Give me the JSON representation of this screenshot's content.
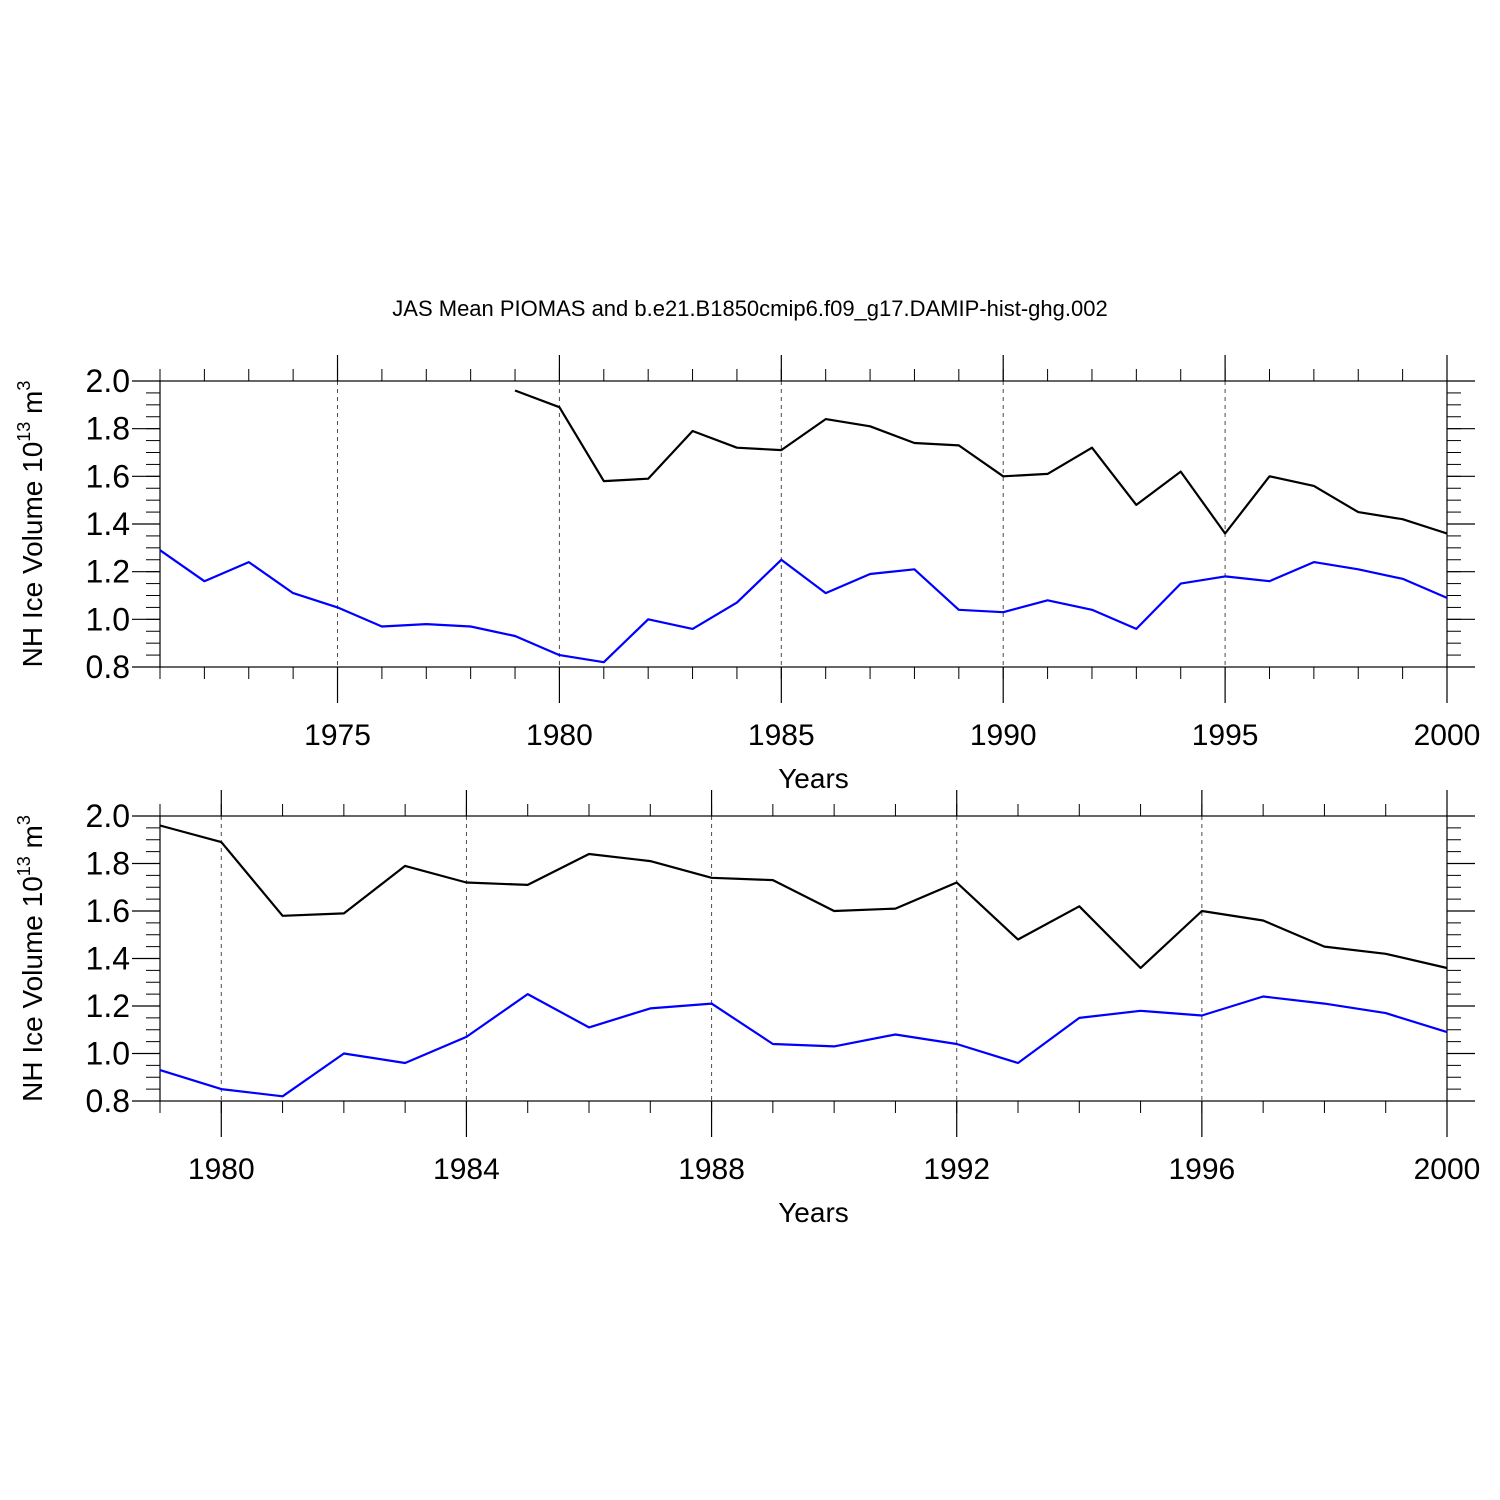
{
  "title": "JAS Mean PIOMAS and b.e21.B1850cmip6.f09_g17.DAMIP-hist-ghg.002",
  "colors": {
    "piomas": "#000000",
    "model": "#0000ff",
    "axis": "#000000",
    "grid": "#000000"
  },
  "chart_data": [
    {
      "type": "line",
      "xlabel": "Years",
      "ylabel_main": "NH Ice Volume 10",
      "ylabel_exp": "13",
      "ylabel_unit": " m",
      "ylabel_unit_exp": "3",
      "xlim": [
        1971,
        2000
      ],
      "ylim": [
        0.8,
        2.0
      ],
      "xticks": [
        "1975",
        "1980",
        "1985",
        "1990",
        "1995",
        "2000"
      ],
      "yticks": [
        "0.8",
        "1.0",
        "1.2",
        "1.4",
        "1.6",
        "1.8",
        "2.0"
      ],
      "grid": "vertical dashed at major x ticks",
      "series": [
        {
          "color": "#000000",
          "x": [
            1979,
            1980,
            1981,
            1982,
            1983,
            1984,
            1985,
            1986,
            1987,
            1988,
            1989,
            1990,
            1991,
            1992,
            1993,
            1994,
            1995,
            1996,
            1997,
            1998,
            1999,
            2000
          ],
          "values": [
            1.96,
            1.89,
            1.58,
            1.59,
            1.79,
            1.72,
            1.71,
            1.84,
            1.81,
            1.74,
            1.73,
            1.6,
            1.61,
            1.72,
            1.48,
            1.62,
            1.36,
            1.6,
            1.56,
            1.45,
            1.42,
            1.36
          ]
        },
        {
          "color": "#0000ff",
          "x": [
            1971,
            1972,
            1973,
            1974,
            1975,
            1976,
            1977,
            1978,
            1979,
            1980,
            1981,
            1982,
            1983,
            1984,
            1985,
            1986,
            1987,
            1988,
            1989,
            1990,
            1991,
            1992,
            1993,
            1994,
            1995,
            1996,
            1997,
            1998,
            1999,
            2000
          ],
          "values": [
            1.29,
            1.16,
            1.24,
            1.11,
            1.05,
            0.97,
            0.98,
            0.97,
            0.93,
            0.85,
            0.82,
            1.0,
            0.96,
            1.07,
            1.25,
            1.11,
            1.19,
            1.21,
            1.04,
            1.03,
            1.08,
            1.04,
            0.96,
            1.15,
            1.18,
            1.16,
            1.24,
            1.21,
            1.17,
            1.09
          ]
        }
      ]
    },
    {
      "type": "line",
      "xlabel": "Years",
      "ylabel_main": "NH Ice Volume 10",
      "ylabel_exp": "13",
      "ylabel_unit": " m",
      "ylabel_unit_exp": "3",
      "xlim": [
        1979,
        2000
      ],
      "ylim": [
        0.8,
        2.0
      ],
      "xticks": [
        "1980",
        "1984",
        "1988",
        "1992",
        "1996",
        "2000"
      ],
      "yticks": [
        "0.8",
        "1.0",
        "1.2",
        "1.4",
        "1.6",
        "1.8",
        "2.0"
      ],
      "grid": "vertical dashed at major x ticks",
      "series": [
        {
          "color": "#000000",
          "x": [
            1979,
            1980,
            1981,
            1982,
            1983,
            1984,
            1985,
            1986,
            1987,
            1988,
            1989,
            1990,
            1991,
            1992,
            1993,
            1994,
            1995,
            1996,
            1997,
            1998,
            1999,
            2000
          ],
          "values": [
            1.96,
            1.89,
            1.58,
            1.59,
            1.79,
            1.72,
            1.71,
            1.84,
            1.81,
            1.74,
            1.73,
            1.6,
            1.61,
            1.72,
            1.48,
            1.62,
            1.36,
            1.6,
            1.56,
            1.45,
            1.42,
            1.36
          ]
        },
        {
          "color": "#0000ff",
          "x": [
            1979,
            1980,
            1981,
            1982,
            1983,
            1984,
            1985,
            1986,
            1987,
            1988,
            1989,
            1990,
            1991,
            1992,
            1993,
            1994,
            1995,
            1996,
            1997,
            1998,
            1999,
            2000
          ],
          "values": [
            0.93,
            0.85,
            0.82,
            1.0,
            0.96,
            1.07,
            1.25,
            1.11,
            1.19,
            1.21,
            1.04,
            1.03,
            1.08,
            1.04,
            0.96,
            1.15,
            1.18,
            1.16,
            1.24,
            1.21,
            1.17,
            1.09
          ]
        }
      ]
    }
  ]
}
